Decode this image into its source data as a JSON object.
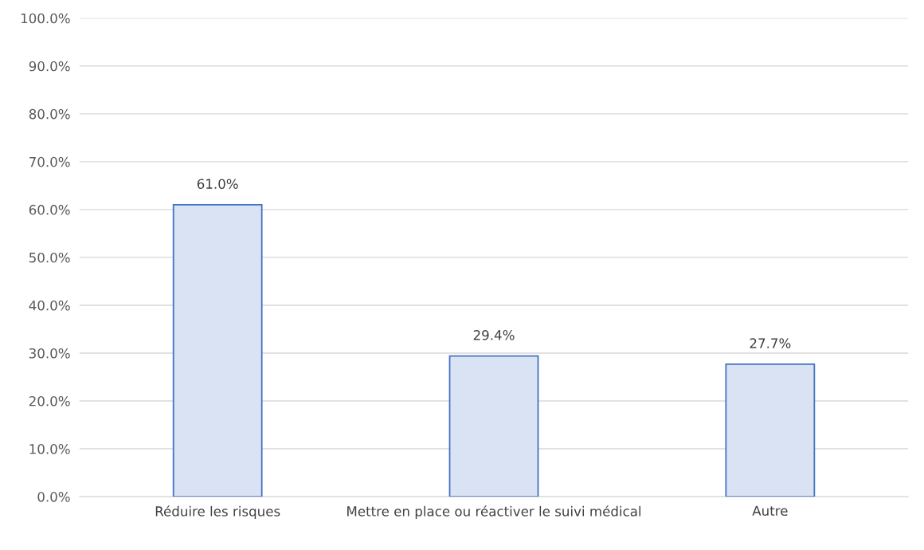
{
  "chart_data": {
    "type": "bar",
    "categories": [
      "Réduire les risques",
      "Mettre en place ou réactiver le suivi médical",
      "Autre"
    ],
    "values": [
      61.0,
      29.4,
      27.7
    ],
    "value_labels": [
      "61.0%",
      "29.4%",
      "27.7%"
    ],
    "color": "#dae3f3",
    "ylim": [
      0,
      100
    ],
    "yticks": [
      {
        "value": 0,
        "label": "0.0%"
      },
      {
        "value": 10,
        "label": "10.0%"
      },
      {
        "value": 20,
        "label": "20.0%"
      },
      {
        "value": 30,
        "label": "30.0%"
      },
      {
        "value": 40,
        "label": "40.0%"
      },
      {
        "value": 50,
        "label": "50.0%"
      },
      {
        "value": 60,
        "label": "60.0%"
      },
      {
        "value": 70,
        "label": "70.0%"
      },
      {
        "value": 80,
        "label": "80.0%"
      },
      {
        "value": 90,
        "label": "90.0%"
      },
      {
        "value": 100,
        "label": "100.0%"
      }
    ],
    "grid": "y"
  }
}
